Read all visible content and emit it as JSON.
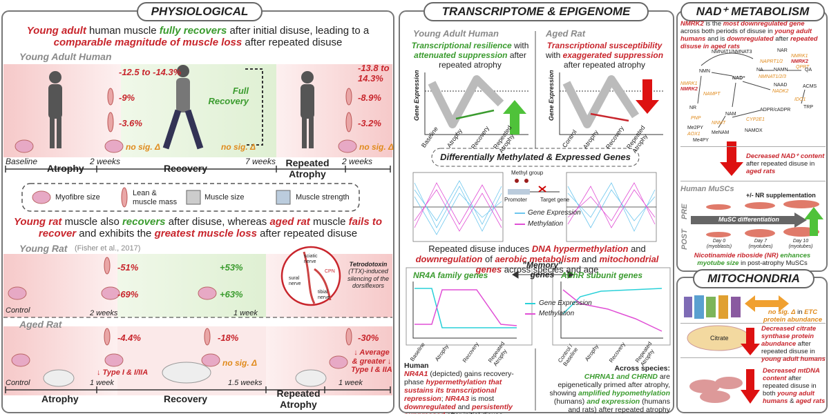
{
  "left": {
    "title": "PHYSIOLOGICAL",
    "headline1": [
      "Young adult",
      " human muscle ",
      "fully recovers",
      " after initial disuse, leading to a ",
      "comparable magnitude of muscle loss",
      " after repeated disuse"
    ],
    "human": {
      "label": "Young Adult Human",
      "atrophy": [
        "-12.5 to -14.3%",
        "-9%",
        "-3.6%",
        "no sig. Δ"
      ],
      "full_recovery": "Full Recovery",
      "recovery": "no sig. Δ",
      "repeated": [
        "-13.8 to 14.3%",
        "-8.9%",
        "-3.2%",
        "no sig. Δ"
      ],
      "timeline": {
        "baseline": "Baseline",
        "weeks": [
          "2 weeks",
          "7 weeks",
          "2 weeks"
        ],
        "phases": [
          "Atrophy",
          "Recovery",
          "Repeated Atrophy"
        ]
      }
    },
    "legend": [
      "Myofibre size",
      "Lean & muscle mass",
      "Muscle size",
      "Muscle strength"
    ],
    "headline2": [
      "Young rat",
      " muscle also ",
      "recovers",
      " after disuse, whereas ",
      "aged rat",
      " muscle ",
      "fails to recover",
      " and exhibits the ",
      "greatest muscle loss",
      " after repeated disuse"
    ],
    "young_rat": {
      "label": "Young Rat",
      "citation": "(Fisher et al., 2017)",
      "atrophy": [
        "-51%",
        "-69%"
      ],
      "recovery": [
        "+53%",
        "+63%"
      ],
      "control": "Control",
      "weeks": [
        "2 weeks",
        "1 week"
      ],
      "ttx": [
        "Tetrodotoxin",
        "(TTX)-induced silencing of the dorsiflexors"
      ],
      "nerves": [
        "sciatic nerve",
        "CPN",
        "sural nerve",
        "tibial nerve"
      ]
    },
    "aged_rat": {
      "label": "Aged Rat",
      "atrophy": [
        "-4.4%",
        "↓ Type I & I/IIA"
      ],
      "recovery": [
        "-18%",
        "no sig. Δ"
      ],
      "repeated": [
        "-30%",
        "↓ Average & greater ↓ Type I & IIA"
      ],
      "control": "Control",
      "weeks": [
        "1 week",
        "1.5 weeks",
        "1 week"
      ],
      "phases": [
        "Atrophy",
        "Recovery",
        "Repeated Atrophy"
      ]
    }
  },
  "middle": {
    "title": "TRANSCRIPTOME & EPIGENOME",
    "human": {
      "label": "Young Adult Human",
      "desc": [
        "Transcriptional resilience",
        " with ",
        "attenuated suppression",
        " after repeated atrophy"
      ],
      "y_axis": "Gene Expression",
      "x": [
        "Baseline",
        "Atrophy",
        "Recovery",
        "Repeated Atrophy"
      ]
    },
    "rat": {
      "label": "Aged Rat",
      "desc": [
        "Transcriptional susceptibility",
        " with ",
        "exaggerated suppression",
        " after repeated atrophy"
      ],
      "y_axis": "Gene Expression",
      "x": [
        "Control",
        "Atrophy",
        "Recovery",
        "Repeated Atrophy"
      ]
    },
    "dmeg": "Differentially Methylated & Expressed Genes",
    "schema": {
      "methyl": "Methyl group",
      "promoter": "Promoter",
      "target": "Target gene"
    },
    "legend": [
      "Gene Expression",
      "Methylation"
    ],
    "summary": [
      "Repeated disuse induces ",
      "DNA hypermethylation",
      " and ",
      "downregulation",
      " of ",
      "aerobic metabolism",
      " and ",
      "mitochondrial genes",
      " across species and age"
    ],
    "memory": "\"Memory\" genes",
    "nr4a": {
      "title": "NR4A family genes",
      "x": [
        "Baseline",
        "Atrophy",
        "Recovery",
        "Repeated Atrophy"
      ]
    },
    "achr": {
      "title": "AChR subunit genes",
      "x": [
        "Control / Baseline",
        "Atrophy",
        "Recovery",
        "Repeated Atrophy"
      ]
    },
    "legend2": [
      "Gene Expression",
      "Methylation"
    ],
    "human_note": [
      "Human",
      "NR4A1",
      " (depicted) gains recovery-phase ",
      "hypermethylation that sustains its transcriptional repression",
      "; ",
      "NR4A3",
      " is most ",
      "downregulated",
      " and ",
      "persistently suppressed",
      " after initial disuse"
    ],
    "species_note": [
      "Across species:",
      "CHRNA1 and CHRND",
      " are epigenetically primed after atrophy, showing ",
      "amplified hypomethylation",
      " (humans) ",
      "and expression",
      " (humans and rats) after repeated atrophy"
    ]
  },
  "nad": {
    "title": "NAD⁺ METABOLISM",
    "intro": [
      "NMRK2",
      " is the ",
      "most downregulated gene",
      " across both periods of disuse in ",
      "young adult humans",
      " and is ",
      "downregulated",
      " after ",
      "repeated disuse in aged rats"
    ],
    "pathway": [
      "NMNAT1/NMNAT3",
      "NAR",
      "NMRK1",
      "NMRK2",
      "NAPRT1/2",
      "QPRT",
      "NMN",
      "NA",
      "NAMN",
      "QA",
      "NMNAT1/2/3",
      "NAD⁺",
      "NAAD",
      "NADK2",
      "ACMS",
      "NMRK1",
      "NMRK2",
      "NAMPT",
      "IDO1",
      "TRP",
      "NR",
      "NAM",
      "ADPR/cADPR",
      "PNP",
      "NNMT",
      "CYP2E1",
      "Me2PY",
      "MeNAM",
      "NAMOX",
      "AOX1",
      "Me4PY"
    ],
    "content": [
      "Decreased NAD⁺ content",
      " after repeated disuse in ",
      "aged rats"
    ],
    "muscs": {
      "label": "Human MuSCs",
      "supp": "+/- NR supplementation",
      "pre": "PRE",
      "post": "POST",
      "diff": "MuSC differentiation",
      "days": [
        "Day 0 (myoblasts)",
        "Day 7 (myotubes)",
        "Day 10 (myotubes)"
      ]
    },
    "nr": [
      "Nicotinamide riboside (NR)",
      " ",
      "enhances myotube size",
      " in post-atrophy MuSCs"
    ]
  },
  "mito": {
    "title": "MITOCHONDRIA",
    "etc": [
      "no sig. Δ",
      " in ",
      "ETC protein abundance"
    ],
    "citrate": "Citrate",
    "cs": [
      "Decreased citrate synthase protein abundance",
      " after repeated disuse in ",
      "young adult humans"
    ],
    "mtdna": [
      "Decreased mtDNA content",
      " after repeated disuse in both ",
      "young adult humans",
      " & ",
      "aged rats"
    ]
  }
}
